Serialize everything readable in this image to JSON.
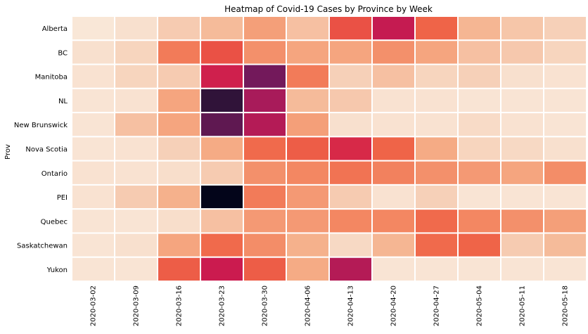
{
  "chart_data": {
    "type": "heatmap",
    "title": "Heatmap of Covid-19 Cases by Province by Week",
    "ylabel": "Prov",
    "xlabel": "",
    "x": [
      "2020-03-02",
      "2020-03-09",
      "2020-03-16",
      "2020-03-23",
      "2020-03-30",
      "2020-04-06",
      "2020-04-13",
      "2020-04-20",
      "2020-04-27",
      "2020-05-04",
      "2020-05-11",
      "2020-05-18"
    ],
    "y": [
      "Alberta",
      "BC",
      "Manitoba",
      "NL",
      "New Brunswick",
      "Nova Scotia",
      "Ontario",
      "PEI",
      "Quebec",
      "Saskatchewan",
      "Yukon"
    ],
    "colorbar": "none",
    "colormap": "rocket_r",
    "values": [
      [
        0.02,
        0.05,
        0.14,
        0.2,
        0.3,
        0.18,
        0.55,
        0.75,
        0.5,
        0.22,
        0.16,
        0.12
      ],
      [
        0.05,
        0.1,
        0.42,
        0.55,
        0.35,
        0.28,
        0.28,
        0.35,
        0.28,
        0.18,
        0.15,
        0.1
      ],
      [
        0.04,
        0.1,
        0.14,
        0.72,
        0.88,
        0.42,
        0.12,
        0.18,
        0.1,
        0.12,
        0.05,
        0.04
      ],
      [
        0.03,
        0.04,
        0.28,
        0.95,
        0.8,
        0.2,
        0.15,
        0.04,
        0.04,
        0.03,
        0.03,
        0.03
      ],
      [
        0.03,
        0.18,
        0.28,
        0.9,
        0.78,
        0.3,
        0.05,
        0.04,
        0.04,
        0.07,
        0.04,
        0.03
      ],
      [
        0.03,
        0.04,
        0.12,
        0.26,
        0.48,
        0.52,
        0.68,
        0.5,
        0.26,
        0.1,
        0.08,
        0.05
      ],
      [
        0.04,
        0.04,
        0.06,
        0.14,
        0.35,
        0.38,
        0.45,
        0.4,
        0.35,
        0.32,
        0.28,
        0.36
      ],
      [
        0.04,
        0.14,
        0.24,
        1.0,
        0.42,
        0.32,
        0.14,
        0.04,
        0.12,
        0.03,
        0.03,
        0.03
      ],
      [
        0.03,
        0.03,
        0.06,
        0.18,
        0.32,
        0.32,
        0.38,
        0.38,
        0.48,
        0.38,
        0.35,
        0.3
      ],
      [
        0.03,
        0.05,
        0.28,
        0.48,
        0.36,
        0.24,
        0.08,
        0.22,
        0.48,
        0.5,
        0.14,
        0.2
      ],
      [
        0.03,
        0.03,
        0.52,
        0.74,
        0.52,
        0.26,
        0.78,
        0.03,
        0.03,
        0.03,
        0.03,
        0.03
      ]
    ]
  }
}
